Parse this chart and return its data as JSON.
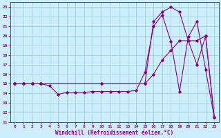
{
  "xlabel": "Windchill (Refroidissement éolien,°C)",
  "bg_color": "#cceeff",
  "line_color": "#880088",
  "grid_color": "#99cccc",
  "xlim": [
    -0.5,
    23.5
  ],
  "ylim": [
    11,
    23.5
  ],
  "xticks": [
    0,
    1,
    2,
    3,
    4,
    5,
    6,
    7,
    8,
    9,
    10,
    11,
    12,
    13,
    14,
    15,
    16,
    17,
    18,
    19,
    20,
    21,
    22,
    23
  ],
  "yticks": [
    11,
    12,
    13,
    14,
    15,
    16,
    17,
    18,
    19,
    20,
    21,
    22,
    23
  ],
  "line1_x": [
    0,
    1,
    2,
    3,
    4,
    5,
    6,
    7,
    8,
    9,
    10,
    11,
    12,
    13,
    14,
    15,
    16,
    17,
    18,
    19,
    20,
    21,
    22,
    23
  ],
  "line1_y": [
    15,
    15,
    15,
    15,
    14.8,
    13.9,
    14.1,
    14.1,
    14.1,
    14.2,
    14.2,
    14.2,
    14.2,
    14.2,
    14.3,
    16.2,
    21.0,
    22.2,
    19.4,
    14.2,
    19.9,
    21.5,
    16.5,
    11.5
  ],
  "line2_x": [
    0,
    1,
    2,
    3,
    10,
    15,
    16,
    17,
    18,
    19,
    20,
    21,
    22,
    23
  ],
  "line2_y": [
    15,
    15,
    15,
    15,
    15,
    15,
    21.5,
    22.5,
    23.0,
    22.5,
    19.5,
    17.0,
    20.0,
    11.5
  ],
  "line3_x": [
    0,
    1,
    2,
    3,
    10,
    15,
    16,
    17,
    18,
    19,
    20,
    21,
    22,
    23
  ],
  "line3_y": [
    15,
    15,
    15,
    15,
    15,
    15,
    16.0,
    17.5,
    18.5,
    19.5,
    19.5,
    19.5,
    20.0,
    11.5
  ]
}
